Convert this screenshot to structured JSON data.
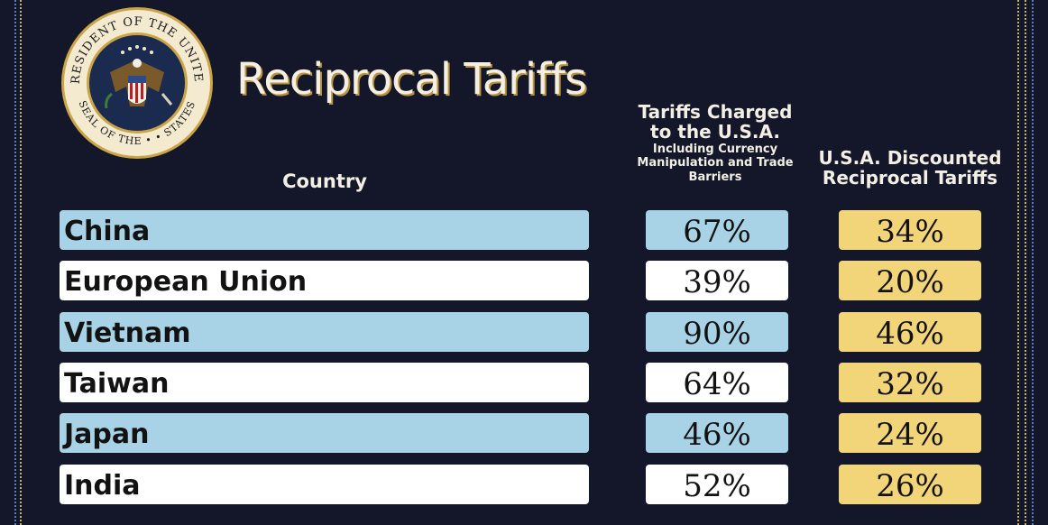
{
  "colors": {
    "background": "#14172a",
    "row_blue": "#a8d3e6",
    "row_white": "#ffffff",
    "discount_yellow": "#f2d479",
    "title_shadow": "#b8923d"
  },
  "seal": {
    "icon": "presidential-seal-icon",
    "text_top": "PRESIDENT OF THE UNITED",
    "text_bottom": "SEAL OF THE ... STATES"
  },
  "chart_data": {
    "type": "table",
    "title": "Reciprocal Tariffs",
    "columns": {
      "country": "Country",
      "charged_main": "Tariffs Charged to the U.S.A.",
      "charged_sub": "Including Currency Manipulation and Trade Barriers",
      "discounted": "U.S.A. Discounted Reciprocal Tariffs"
    },
    "rows": [
      {
        "country": "China",
        "charged": "67%",
        "discounted": "34%"
      },
      {
        "country": "European Union",
        "charged": "39%",
        "discounted": "20%"
      },
      {
        "country": "Vietnam",
        "charged": "90%",
        "discounted": "46%"
      },
      {
        "country": "Taiwan",
        "charged": "64%",
        "discounted": "32%"
      },
      {
        "country": "Japan",
        "charged": "46%",
        "discounted": "24%"
      },
      {
        "country": "India",
        "charged": "52%",
        "discounted": "26%"
      }
    ]
  }
}
